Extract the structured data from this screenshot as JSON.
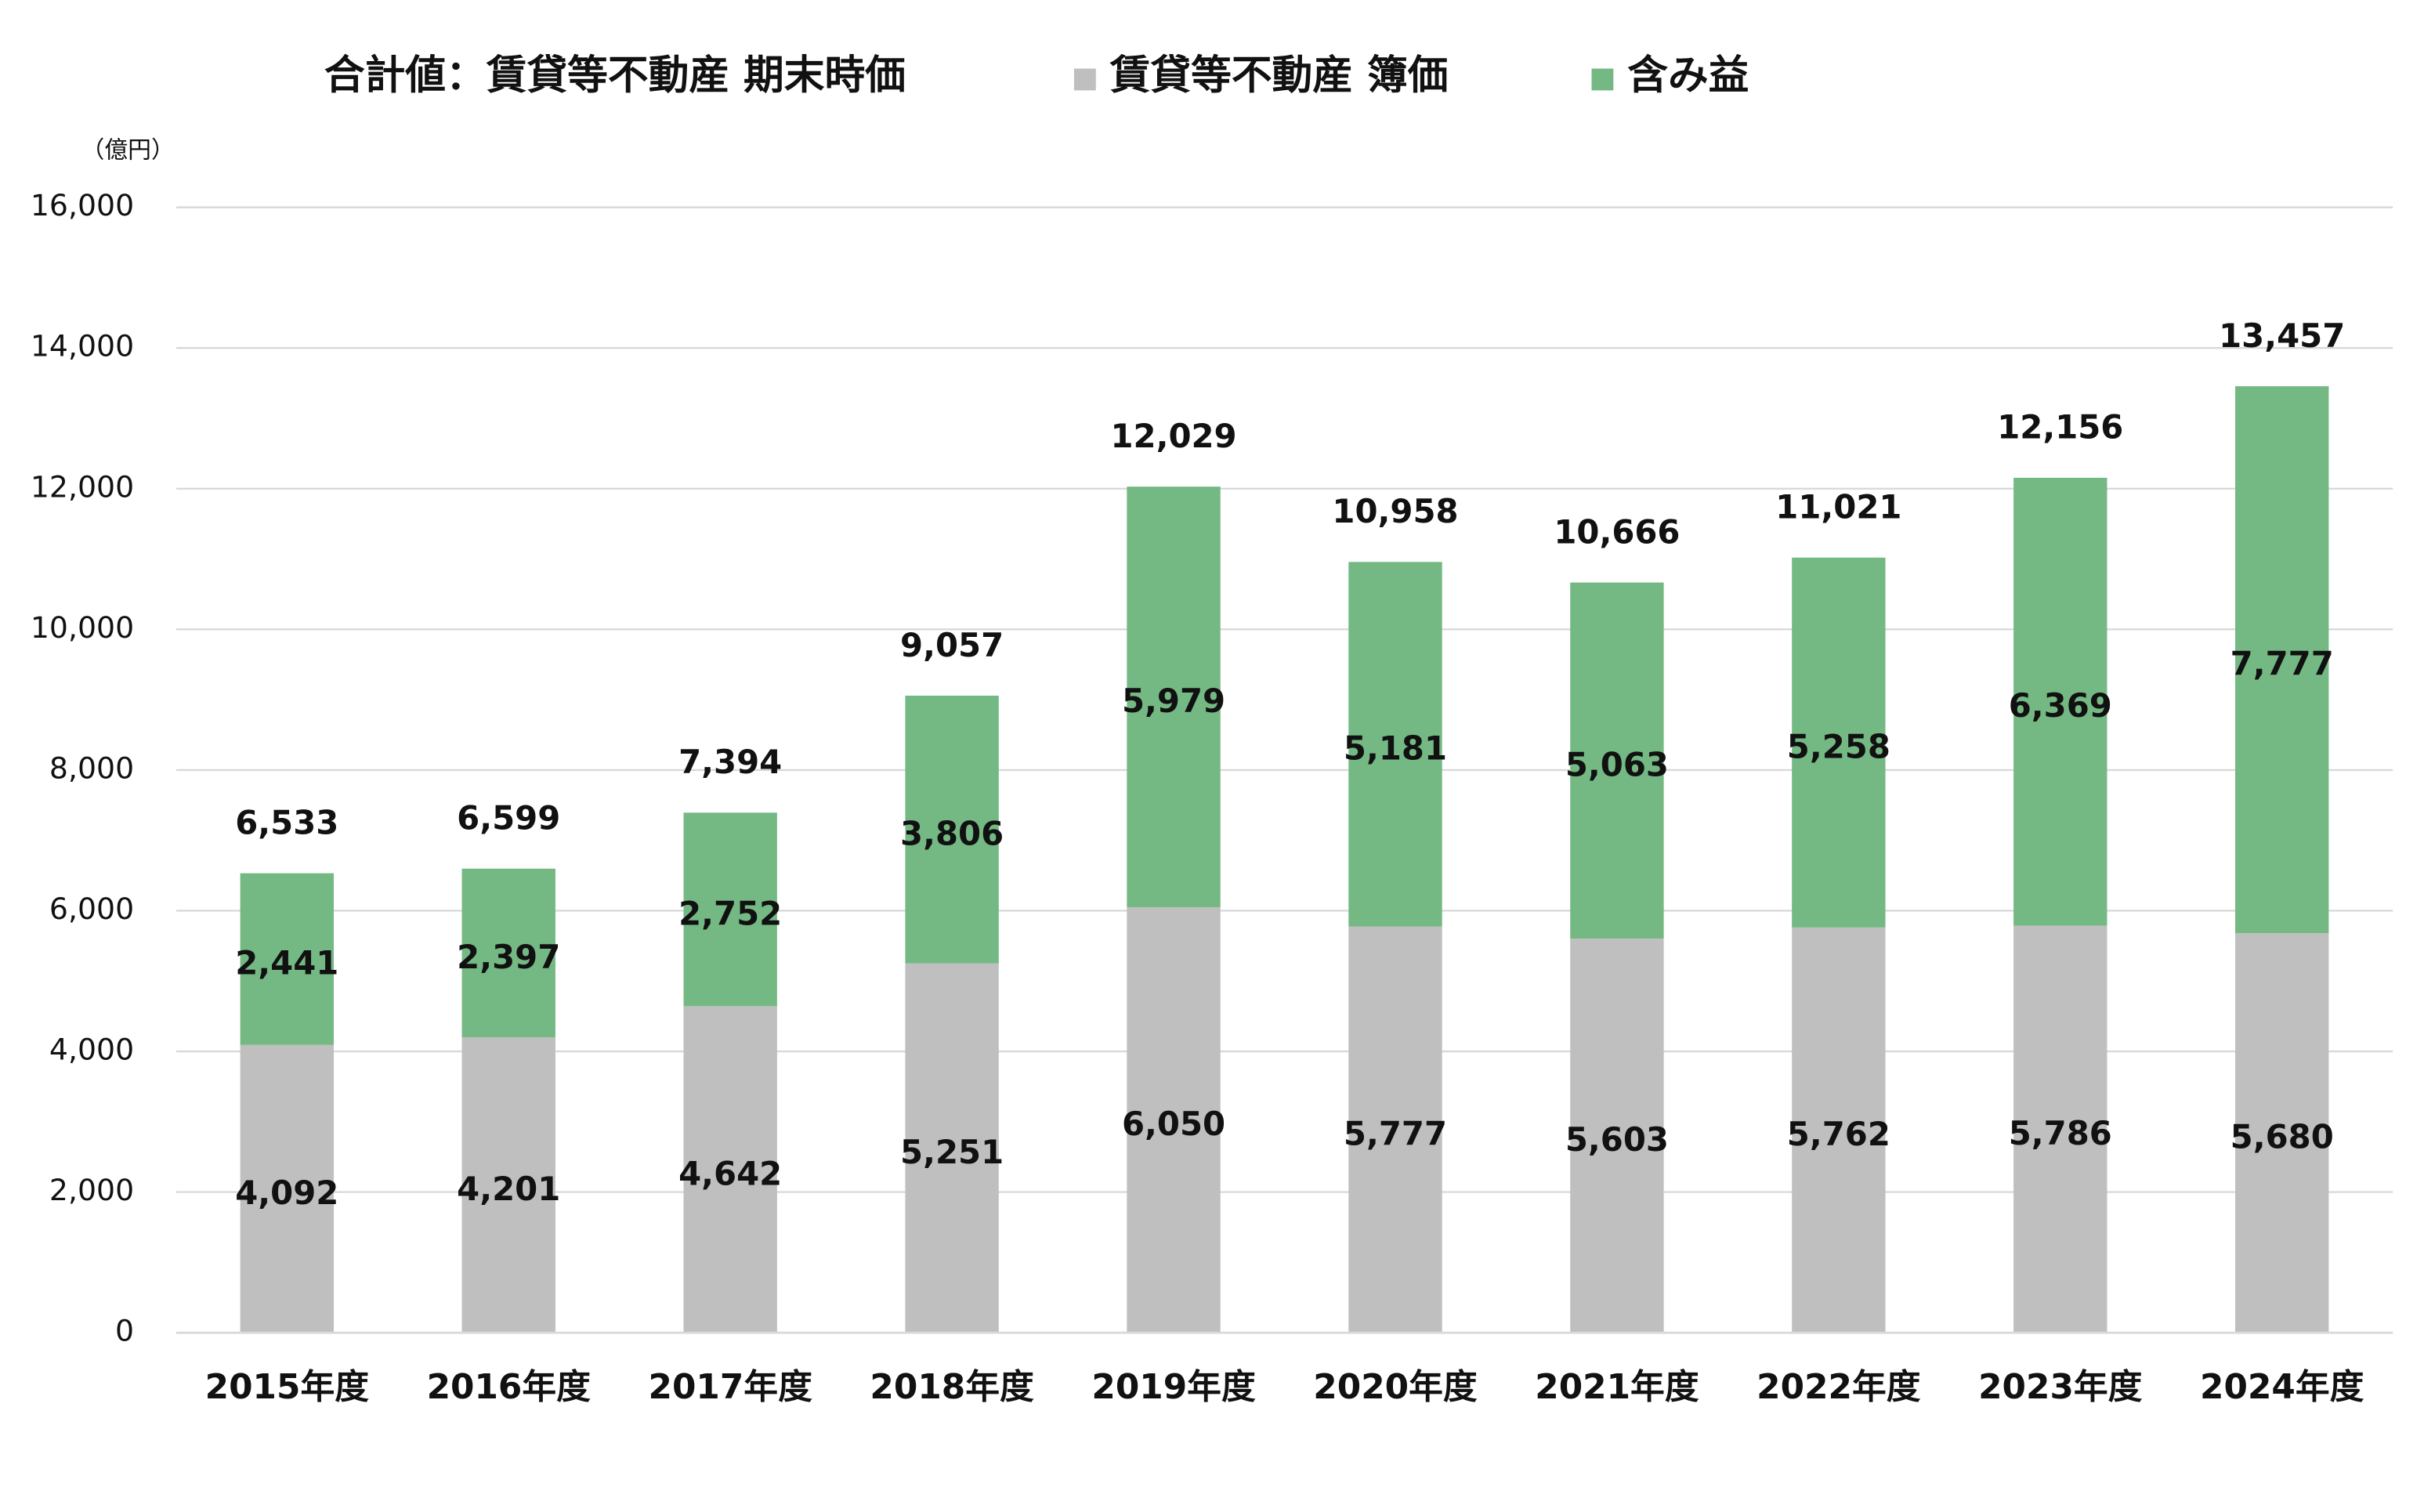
{
  "chart_data": {
    "type": "stacked-bar",
    "y_unit": "（億円）",
    "categories": [
      "2015年度",
      "2016年度",
      "2017年度",
      "2018年度",
      "2019年度",
      "2020年度",
      "2021年度",
      "2022年度",
      "2023年度",
      "2024年度"
    ],
    "series": [
      {
        "name": "賃貸等不動産 簿価",
        "color": "#bfbfbf",
        "values": [
          4092,
          4201,
          4642,
          5251,
          6050,
          5777,
          5603,
          5762,
          5786,
          5680
        ],
        "value_labels": [
          "4,092",
          "4,201",
          "4,642",
          "5,251",
          "6,050",
          "5,777",
          "5,603",
          "5,762",
          "5,786",
          "5,680"
        ]
      },
      {
        "name": "含み益",
        "color": "#74b983",
        "values": [
          2441,
          2397,
          2752,
          3806,
          5979,
          5181,
          5063,
          5258,
          6369,
          7777
        ],
        "value_labels": [
          "2,441",
          "2,397",
          "2,752",
          "3,806",
          "5,979",
          "5,181",
          "5,063",
          "5,258",
          "6,369",
          "7,777"
        ]
      }
    ],
    "totals": {
      "name": "合計値：賃貸等不動産 期末時価",
      "values": [
        6533,
        6599,
        7394,
        9057,
        12029,
        10958,
        10666,
        11021,
        12156,
        13457
      ],
      "value_labels": [
        "6,533",
        "6,599",
        "7,394",
        "9,057",
        "12,029",
        "10,958",
        "10,666",
        "11,021",
        "12,156",
        "13,457"
      ]
    },
    "ylim": [
      0,
      16000
    ],
    "yticks": [
      0,
      {
        "value": 2000,
        "label": "2,000"
      },
      {
        "value": 4000,
        "label": "4,000"
      },
      {
        "value": 6000,
        "label": "6,000"
      },
      {
        "value": 8000,
        "label": "8,000"
      },
      {
        "value": 10000,
        "label": "10,000"
      },
      {
        "value": 12000,
        "label": "12,000"
      },
      {
        "value": 14000,
        "label": "14,000"
      },
      {
        "value": 16000,
        "label": "16,000"
      }
    ],
    "grid": true
  }
}
